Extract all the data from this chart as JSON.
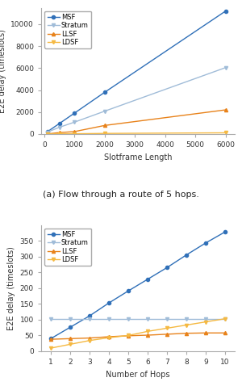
{
  "plot1": {
    "xlabel": "Slotframe Length",
    "ylabel": "E2E delay (timeslots)",
    "caption": "(a) Flow through a route of 5 hops.",
    "series": {
      "MSF": {
        "x": [
          101,
          500,
          1000,
          2000,
          6000
        ],
        "y": [
          200,
          950,
          1900,
          3800,
          11200
        ],
        "color": "#3070b8",
        "marker": "o",
        "markersize": 3,
        "linewidth": 1.0
      },
      "Stratum": {
        "x": [
          101,
          500,
          1000,
          2000,
          6000
        ],
        "y": [
          170,
          610,
          1080,
          2080,
          6050
        ],
        "color": "#a0bcd8",
        "marker": "v",
        "markersize": 3,
        "linewidth": 1.0
      },
      "LLSF": {
        "x": [
          101,
          500,
          1000,
          2000,
          6000
        ],
        "y": [
          10,
          130,
          220,
          780,
          2200
        ],
        "color": "#e8821a",
        "marker": "^",
        "markersize": 3,
        "linewidth": 1.0
      },
      "LDSF": {
        "x": [
          101,
          500,
          1000,
          2000,
          6000
        ],
        "y": [
          5,
          15,
          25,
          55,
          110
        ],
        "color": "#f5b942",
        "marker": "v",
        "markersize": 3,
        "linewidth": 1.0
      }
    },
    "xlim": [
      -100,
      6300
    ],
    "ylim": [
      0,
      11500
    ],
    "xticks": [
      0,
      1000,
      2000,
      3000,
      4000,
      5000,
      6000
    ],
    "yticks": [
      0,
      2000,
      4000,
      6000,
      8000,
      10000
    ]
  },
  "plot2": {
    "xlabel": "Number of Hops",
    "ylabel": "E2E delay (timeslots)",
    "series": {
      "MSF": {
        "x": [
          1,
          2,
          3,
          4,
          5,
          6,
          7,
          8,
          9,
          10
        ],
        "y": [
          40,
          76,
          112,
          153,
          191,
          228,
          265,
          305,
          343,
          378
        ],
        "color": "#3070b8",
        "marker": "o",
        "markersize": 3,
        "linewidth": 1.0
      },
      "Stratum": {
        "x": [
          1,
          2,
          3,
          4,
          5,
          6,
          7,
          8,
          9,
          10
        ],
        "y": [
          103,
          103,
          103,
          103,
          103,
          103,
          103,
          103,
          103,
          103
        ],
        "color": "#a0bcd8",
        "marker": "v",
        "markersize": 3,
        "linewidth": 1.0
      },
      "LLSF": {
        "x": [
          1,
          2,
          3,
          4,
          5,
          6,
          7,
          8,
          9,
          10
        ],
        "y": [
          38,
          40,
          42,
          46,
          49,
          51,
          54,
          57,
          58,
          58
        ],
        "color": "#e8821a",
        "marker": "^",
        "markersize": 3,
        "linewidth": 1.0
      },
      "LDSF": {
        "x": [
          1,
          2,
          3,
          4,
          5,
          6,
          7,
          8,
          9,
          10
        ],
        "y": [
          10,
          22,
          34,
          43,
          50,
          63,
          73,
          83,
          93,
          103
        ],
        "color": "#f5b942",
        "marker": "v",
        "markersize": 3,
        "linewidth": 1.0
      }
    },
    "xlim": [
      0.5,
      10.5
    ],
    "ylim": [
      0,
      400
    ],
    "xticks": [
      1,
      2,
      3,
      4,
      5,
      6,
      7,
      8,
      9,
      10
    ],
    "yticks": [
      0,
      50,
      100,
      150,
      200,
      250,
      300,
      350
    ]
  },
  "legend_labels": [
    "MSF",
    "Stratum",
    "LLSF",
    "LDSF"
  ],
  "bg_color": "#ffffff",
  "caption1": "(a) Flow through a route of 5 hops.",
  "caption1_fontsize": 8.0,
  "tick_fontsize": 6.5,
  "label_fontsize": 7.0,
  "legend_fontsize": 6.0
}
